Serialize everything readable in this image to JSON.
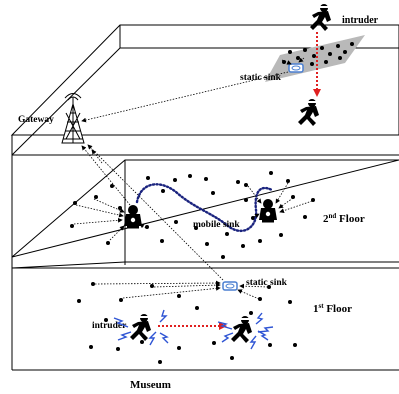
{
  "labels": {
    "intruder_top": "intruder",
    "static_sink_top": "static sink",
    "gateway": "Gateway",
    "mobile_sink": "mobile sink",
    "floor2_num": "2",
    "floor2_sup": "nd",
    "floor2_word": " Floor",
    "static_sink_bottom": "static sink",
    "floor1_num": "1",
    "floor1_sup": "st",
    "floor1_word": " Floor",
    "intruder_bottom": "intruder",
    "museum": "Museum"
  },
  "colors": {
    "lines": "#000000",
    "intruder_path": "#e02020",
    "mobile_sink_path": "#1a237e",
    "lightning": "#2f55d4",
    "static_sink": "#4a7fd1",
    "sensor_patch": "#b9b9b9"
  }
}
